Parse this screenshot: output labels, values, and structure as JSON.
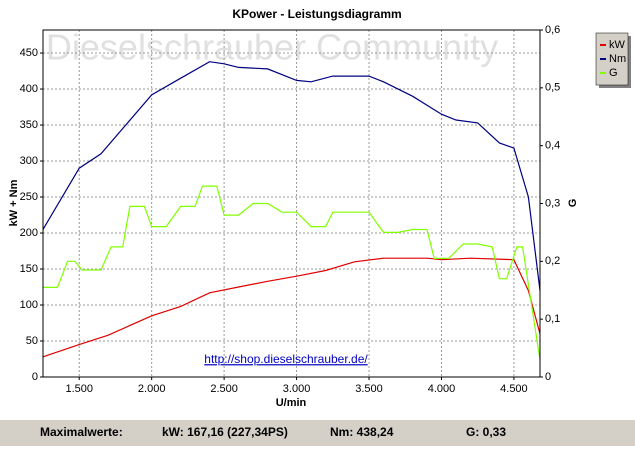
{
  "chart_data": {
    "type": "line",
    "title": "KPower - Leistungsdiagramm",
    "watermark": "Dieselschrauber Community",
    "link": "http://shop.dieselschrauber.de/",
    "xlabel": "U/min",
    "ylabel": "kW + Nm",
    "y2label": "G",
    "xlim": [
      1250,
      4680
    ],
    "xticks": [
      {
        "value": 1500,
        "label": "1.500"
      },
      {
        "value": 2000,
        "label": "2.000"
      },
      {
        "value": 2500,
        "label": "2.500"
      },
      {
        "value": 3000,
        "label": "3.000"
      },
      {
        "value": 3500,
        "label": "3.500"
      },
      {
        "value": 4000,
        "label": "4.000"
      },
      {
        "value": 4500,
        "label": "4.500"
      }
    ],
    "ylim": [
      0,
      482
    ],
    "yticks": [
      0,
      50,
      100,
      150,
      200,
      250,
      300,
      350,
      400,
      450
    ],
    "y2lim": [
      0,
      0.6
    ],
    "y2ticks": [
      0,
      {
        "value": 0.1,
        "label": "0,1"
      },
      {
        "value": 0.2,
        "label": "0,2"
      },
      {
        "value": 0.3,
        "label": "0,3"
      },
      {
        "value": 0.4,
        "label": "0,4"
      },
      {
        "value": 0.5,
        "label": "0,5"
      },
      {
        "value": 0.6,
        "label": "0,6"
      }
    ],
    "grid": true,
    "legend": "top-right",
    "series": [
      {
        "name": "kW",
        "color": "#e00000",
        "x": [
          1250,
          1500,
          1700,
          2000,
          2200,
          2400,
          2600,
          2800,
          3000,
          3200,
          3400,
          3600,
          3900,
          4000,
          4200,
          4500,
          4600,
          4680
        ],
        "values": [
          28,
          45,
          58,
          85,
          98,
          117,
          125,
          133,
          140,
          148,
          160,
          165,
          165,
          163,
          165,
          163,
          120,
          60
        ]
      },
      {
        "name": "Nm",
        "color": "#000080",
        "x": [
          1250,
          1500,
          1650,
          2000,
          2200,
          2400,
          2500,
          2600,
          2800,
          3000,
          3100,
          3250,
          3500,
          3600,
          3800,
          4000,
          4100,
          4250,
          4400,
          4500,
          4600,
          4680
        ],
        "values": [
          205,
          290,
          310,
          392,
          415,
          438,
          435,
          430,
          428,
          412,
          410,
          418,
          418,
          410,
          390,
          365,
          357,
          353,
          325,
          318,
          250,
          120
        ]
      },
      {
        "name": "G",
        "color": "#80ff00",
        "axis": "y2",
        "x": [
          1250,
          1350,
          1420,
          1470,
          1520,
          1650,
          1720,
          1800,
          1850,
          1950,
          2000,
          2100,
          2200,
          2300,
          2350,
          2450,
          2500,
          2600,
          2700,
          2800,
          2900,
          3000,
          3100,
          3200,
          3250,
          3500,
          3600,
          3700,
          3800,
          3900,
          3950,
          4050,
          4150,
          4250,
          4350,
          4400,
          4450,
          4520,
          4560,
          4680
        ],
        "values": [
          0.155,
          0.155,
          0.2,
          0.2,
          0.185,
          0.185,
          0.225,
          0.225,
          0.295,
          0.295,
          0.26,
          0.26,
          0.295,
          0.295,
          0.33,
          0.33,
          0.28,
          0.28,
          0.3,
          0.3,
          0.285,
          0.285,
          0.26,
          0.26,
          0.285,
          0.285,
          0.25,
          0.25,
          0.255,
          0.255,
          0.205,
          0.205,
          0.23,
          0.23,
          0.225,
          0.17,
          0.17,
          0.225,
          0.225,
          0.03
        ]
      }
    ]
  },
  "footer": {
    "label": "Maximalwerte:",
    "kw": "kW: 167,16 (227,34PS)",
    "nm": "Nm: 438,24",
    "g": "G: 0,33"
  }
}
